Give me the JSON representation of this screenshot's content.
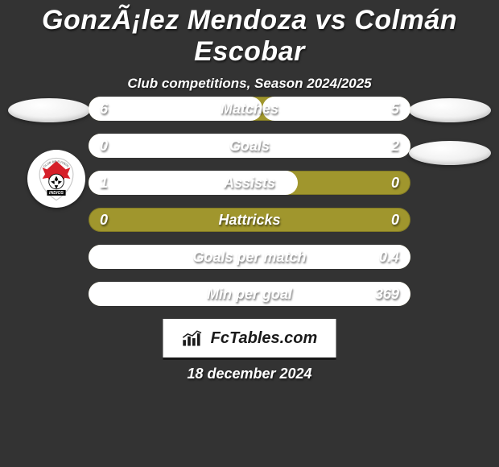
{
  "colors": {
    "background": "#333333",
    "rowTrack": "#a0962d",
    "fillLeft": "#ffffff",
    "fillRight": "#ffffff",
    "text": "#ffffff",
    "brandBg": "#ffffff",
    "brandText": "#1a1a1a"
  },
  "title": "GonzÃ¡lez Mendoza vs Colmán Escobar",
  "subtitle": "Club competitions, Season 2024/2025",
  "date": "18 december 2024",
  "brand": "FcTables.com",
  "clubLogo": {
    "top_text": "CLUB DE FUTBOL",
    "name": "INDIOS",
    "red": "#d6202a",
    "black": "#000000"
  },
  "rows": [
    {
      "label": "Matches",
      "left": "6",
      "right": "5",
      "leftPct": 54,
      "rightPct": 46
    },
    {
      "label": "Goals",
      "left": "0",
      "right": "2",
      "leftPct": 0,
      "rightPct": 100
    },
    {
      "label": "Assists",
      "left": "1",
      "right": "0",
      "leftPct": 65,
      "rightPct": 0
    },
    {
      "label": "Hattricks",
      "left": "0",
      "right": "0",
      "leftPct": 0,
      "rightPct": 0
    },
    {
      "label": "Goals per match",
      "left": "",
      "right": "0.4",
      "leftPct": 0,
      "rightPct": 100
    },
    {
      "label": "Min per goal",
      "left": "",
      "right": "369",
      "leftPct": 0,
      "rightPct": 100
    }
  ]
}
